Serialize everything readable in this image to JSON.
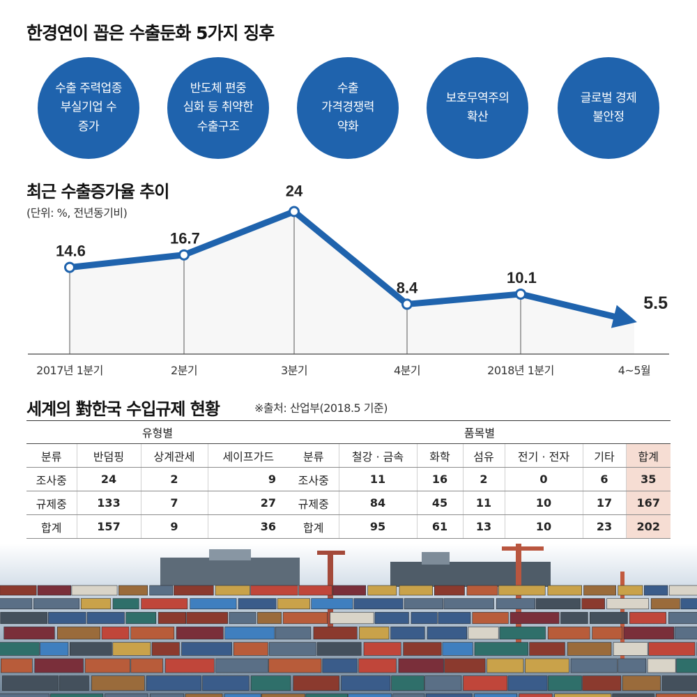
{
  "headline": "한경연이 꼽은 수출둔화 5가지 징후",
  "signs": [
    "수출 주력업종\n부실기업 수\n증가",
    "반도체 편중\n심화 등 취약한\n수출구조",
    "수출\n가격경쟁력\n약화",
    "보호무역주의\n확산",
    "글로벌 경제\n불안정"
  ],
  "chart_title": "최근 수출증가율 추이",
  "chart_unit": "(단위: %, 전년동기비)",
  "chart_data": {
    "type": "line",
    "title": "최근 수출증가율 추이",
    "categories": [
      "2017년 1분기",
      "2분기",
      "3분기",
      "4분기",
      "2018년 1분기",
      "4~5월"
    ],
    "values": [
      14.6,
      16.7,
      24,
      8.4,
      10.1,
      5.5
    ],
    "value_labels": [
      "14.6",
      "16.7",
      "24",
      "8.4",
      "10.1",
      "5.5"
    ],
    "xlabel": "",
    "ylabel": "",
    "ylim": [
      0,
      25
    ],
    "grid": false,
    "line_color": "#1f63ad"
  },
  "table_title": "세계의 對한국 수입규제 현황",
  "table_source": "※출처: 산업부(2018.5 기준)",
  "table": {
    "group_type": "유형별",
    "group_item": "품목별",
    "headers": [
      "분류",
      "반덤핑",
      "상계관세",
      "세이프가드",
      "분류",
      "철강 · 금속",
      "화학",
      "섬유",
      "전기 · 전자",
      "기타",
      "합계"
    ],
    "rows": [
      [
        "조사중",
        "24",
        "2",
        "9",
        "조사중",
        "11",
        "16",
        "2",
        "0",
        "6",
        "35"
      ],
      [
        "규제중",
        "133",
        "7",
        "27",
        "규제중",
        "84",
        "45",
        "11",
        "10",
        "17",
        "167"
      ],
      [
        "합계",
        "157",
        "9",
        "36",
        "합계",
        "95",
        "61",
        "13",
        "10",
        "23",
        "202"
      ]
    ]
  },
  "colors": {
    "accent": "#1f63ad",
    "total_bg": "#f6ddd3"
  },
  "photo": "container-port-photo"
}
